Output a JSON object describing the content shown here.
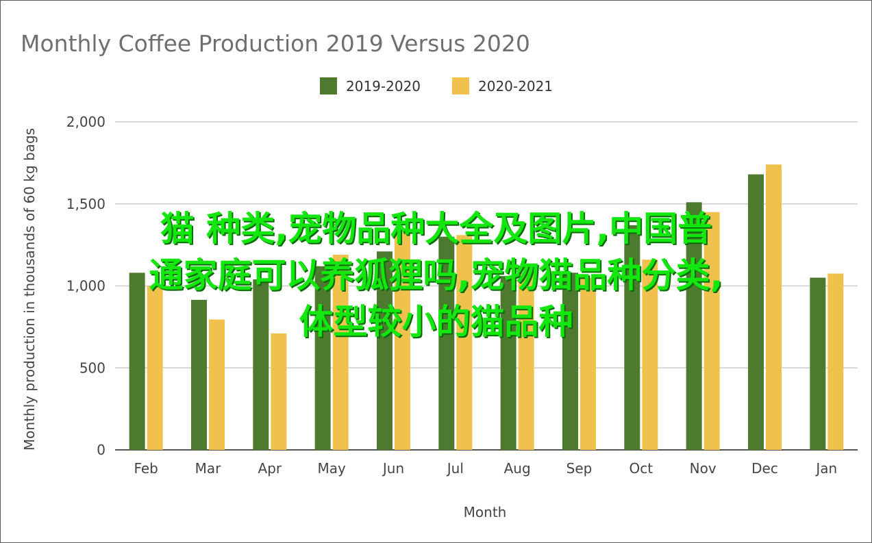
{
  "chart_data": {
    "type": "bar",
    "title": "Monthly Coffee Production 2019 Versus 2020",
    "xlabel": "Month",
    "ylabel": "Monthly production in thousands of 60 kg bags",
    "categories": [
      "Feb",
      "Mar",
      "Apr",
      "May",
      "Jun",
      "Jul",
      "Aug",
      "Sep",
      "Oct",
      "Nov",
      "Dec",
      "Jan"
    ],
    "series": [
      {
        "name": "2019-2020",
        "color": "#4e7a2f",
        "values": [
          1080,
          915,
          1040,
          1120,
          1210,
          1300,
          1060,
          1080,
          1370,
          1510,
          1680,
          1050
        ]
      },
      {
        "name": "2020-2021",
        "color": "#f0c24d",
        "values": [
          1000,
          795,
          710,
          1190,
          1350,
          1310,
          1080,
          1050,
          1160,
          1450,
          1740,
          1075
        ]
      }
    ],
    "ylim": [
      0,
      2000
    ],
    "yticks": [
      0,
      500,
      1000,
      1500,
      2000
    ],
    "ytick_labels": [
      "0",
      "500",
      "1,000",
      "1,500",
      "2,000"
    ],
    "grid": true,
    "legend": "top-center"
  },
  "overlay": {
    "lines": [
      "猫 种类,宠物品种大全及图片,中国普",
      "通家庭可以养狐狸吗,宠物猫品种分类,",
      "体型较小的猫品种"
    ]
  }
}
